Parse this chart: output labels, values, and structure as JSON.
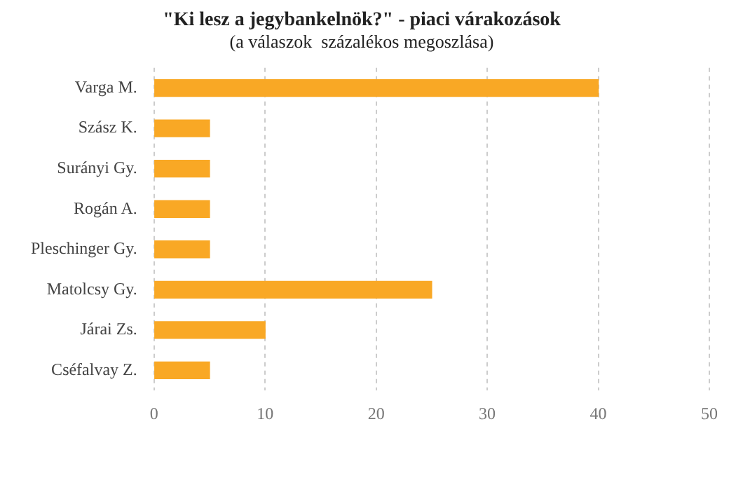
{
  "chart_data": {
    "type": "bar",
    "orientation": "horizontal",
    "title": "\"Ki lesz a jegybankelnök?\" - piaci várakozások",
    "subtitle": "(a válaszok  százalékos megoszlása)",
    "categories": [
      "Varga M.",
      "Szász K.",
      "Surányi Gy.",
      "Rogán A.",
      "Pleschinger Gy.",
      "Matolcsy Gy.",
      "Járai Zs.",
      "Cséfalvay Z."
    ],
    "values": [
      40,
      5,
      5,
      5,
      5,
      25,
      10,
      5
    ],
    "color": "#f9a825",
    "xlim": [
      0,
      50
    ],
    "xticks": [
      0,
      10,
      20,
      30,
      40,
      50
    ],
    "grid": "x"
  }
}
